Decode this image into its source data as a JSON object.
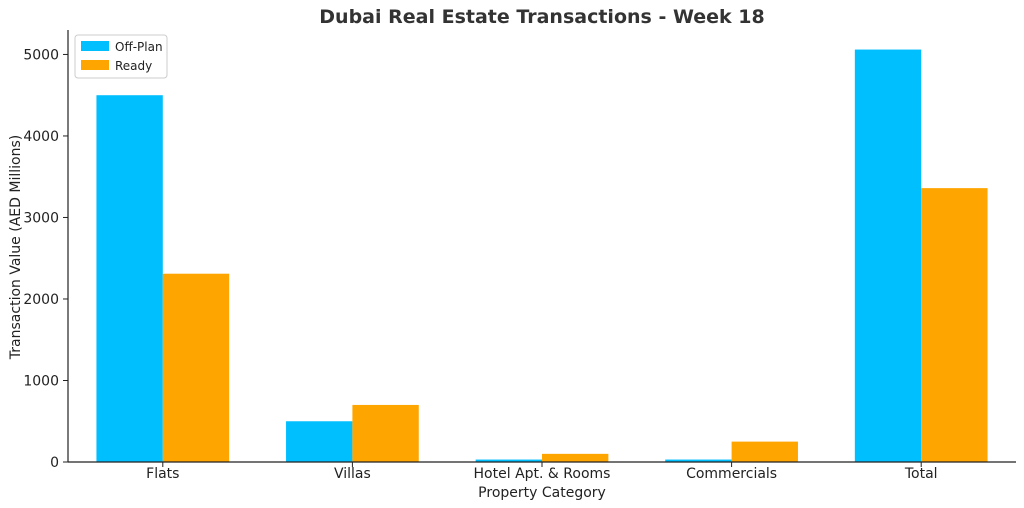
{
  "chart_data": {
    "type": "bar",
    "title": "Dubai Real Estate Transactions - Week 18",
    "xlabel": "Property Category",
    "ylabel": "Transaction Value (AED Millions)",
    "categories": [
      "Flats",
      "Villas",
      "Hotel Apt. & Rooms",
      "Commercials",
      "Total"
    ],
    "series": [
      {
        "name": "Off-Plan",
        "color": "#00BFFF",
        "values": [
          4500,
          500,
          30,
          30,
          5060
        ]
      },
      {
        "name": "Ready",
        "color": "#FFA500",
        "values": [
          2310,
          700,
          100,
          250,
          3360
        ]
      }
    ],
    "ylim": [
      0,
      5300
    ],
    "yticks": [
      0,
      1000,
      2000,
      3000,
      4000,
      5000
    ],
    "legend_position": "top-left",
    "grid": false
  }
}
